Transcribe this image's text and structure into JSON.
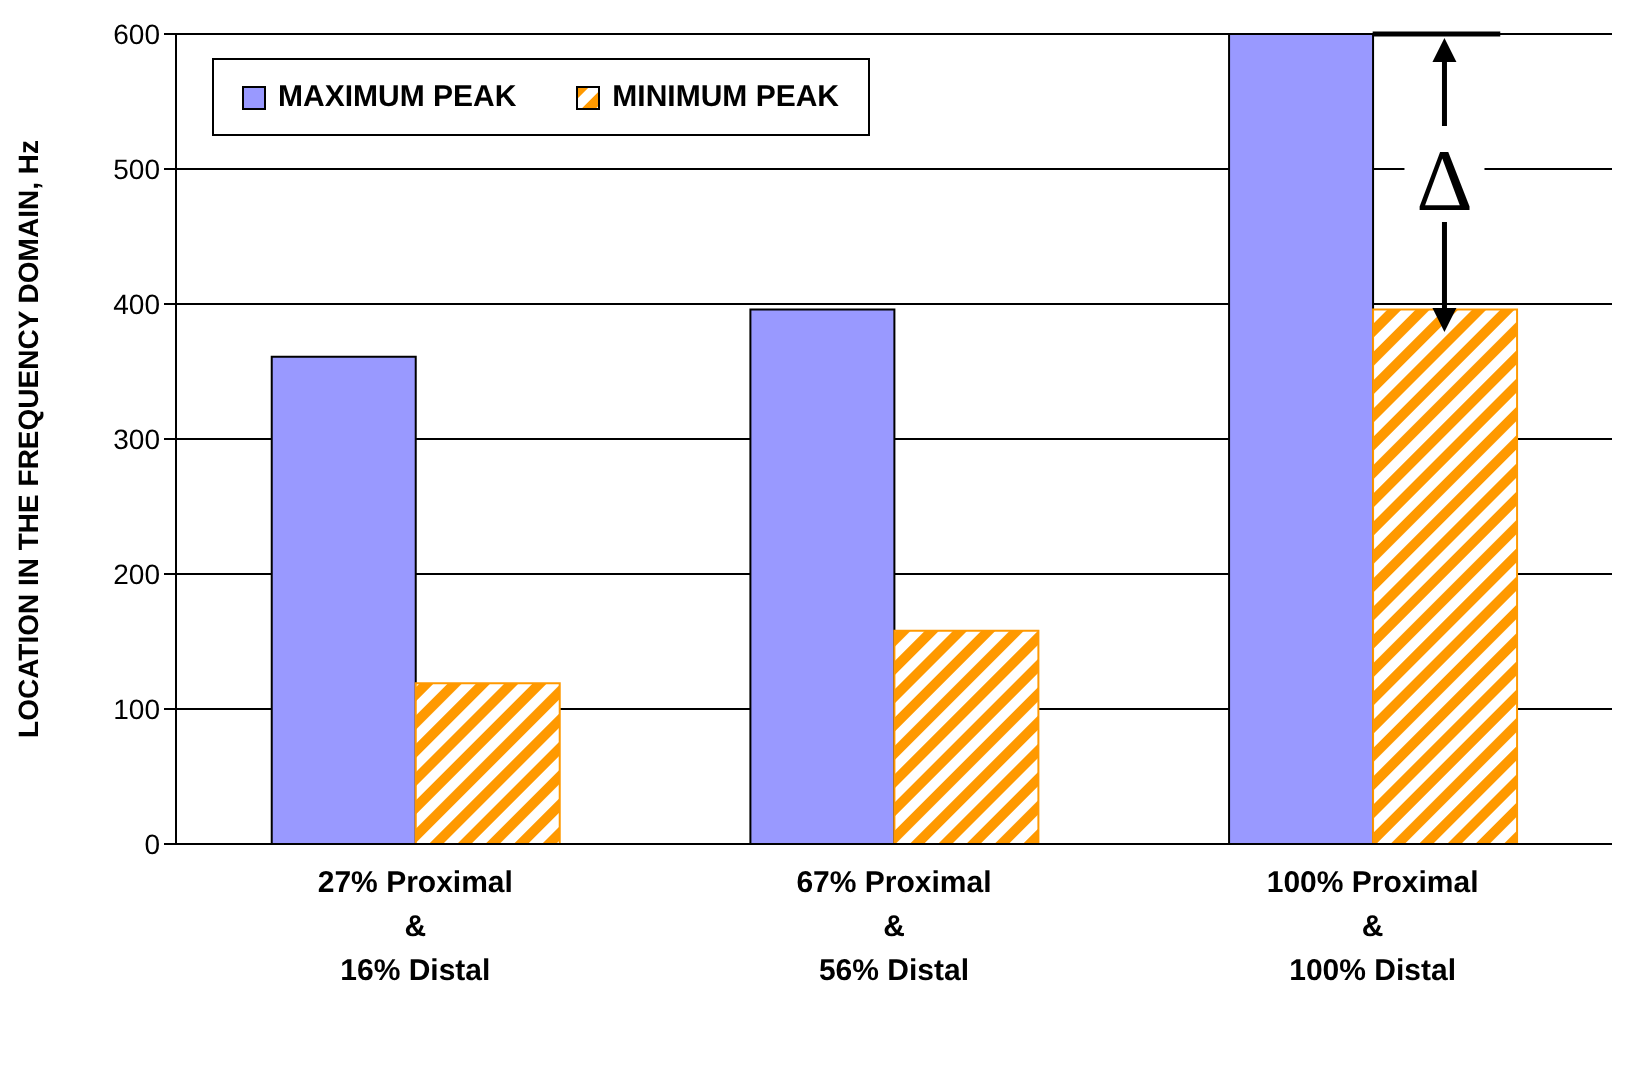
{
  "chart_data": {
    "type": "bar",
    "ylabel": "LOCATION IN THE FREQUENCY DOMAIN, Hz",
    "categories": [
      "27% Proximal\n&\n16% Distal",
      "67% Proximal\n&\n56% Distal",
      "100% Proximal\n&\n100% Distal"
    ],
    "series": [
      {
        "name": "MAXIMUM PEAK",
        "color": "#9999ff",
        "values": [
          361,
          396,
          600
        ]
      },
      {
        "name": "MINIMUM PEAK",
        "color": "#ff9900",
        "values": [
          119,
          158,
          396
        ]
      }
    ],
    "ylim": [
      0,
      600
    ],
    "yticks": [
      0,
      100,
      200,
      300,
      400,
      500,
      600
    ],
    "grid": "y",
    "legend": "top left",
    "annotations": [
      {
        "text": "Δ",
        "x": "100% Proximal\n&\n100% Distal",
        "y": 500
      }
    ]
  }
}
